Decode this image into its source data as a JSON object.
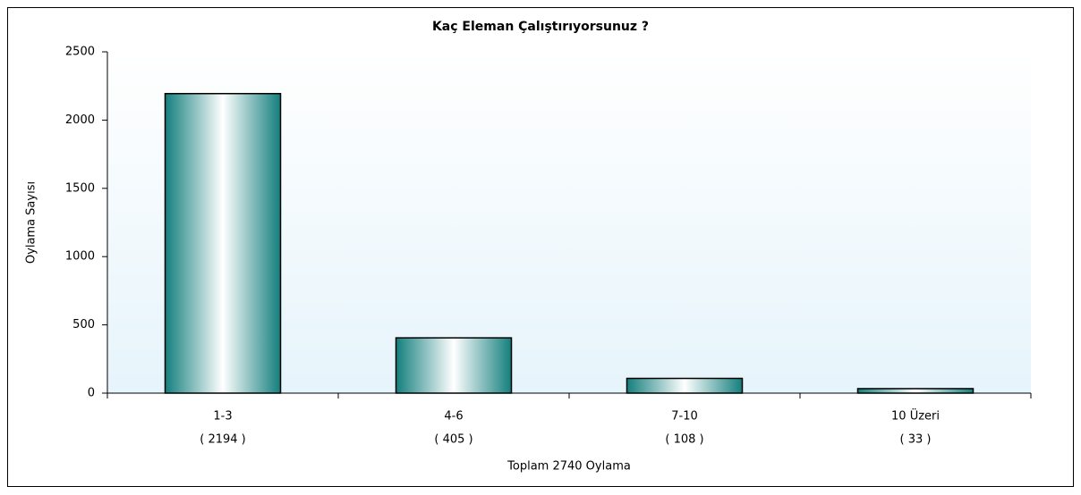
{
  "chart_data": {
    "type": "bar",
    "title": "Kaç Eleman Çalıştırıyorsunuz ?",
    "x_label": "Toplam 2740 Oylama",
    "y_label": "Oylama Sayısı",
    "categories": [
      "1-3",
      "4-6",
      "7-10",
      "10 Üzeri"
    ],
    "values": [
      2194,
      405,
      108,
      33
    ],
    "value_labels": [
      "( 2194 )",
      "( 405 )",
      "( 108 )",
      "( 33 )"
    ],
    "color": "#1a8c8a",
    "ylim": [
      0,
      2500
    ],
    "yticks": [
      0,
      500,
      1000,
      1500,
      2000,
      2500
    ],
    "grid": false
  }
}
